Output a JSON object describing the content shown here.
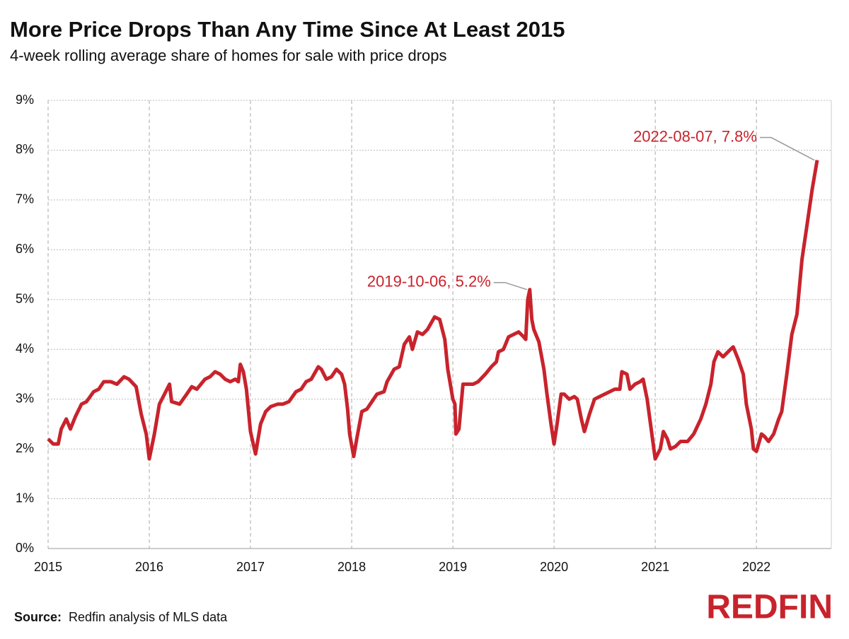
{
  "chart_data": {
    "type": "line",
    "title": "More Price Drops Than Any Time Since At Least 2015",
    "subtitle": "4-week rolling average share of homes for sale with price drops",
    "source_label": "Source:",
    "source": "Redfin analysis of MLS data",
    "logo": "REDFIN",
    "color": "#c8232c",
    "grid": true,
    "xlim": [
      2015,
      2022.74
    ],
    "xticks": [
      2015,
      2016,
      2017,
      2018,
      2019,
      2020,
      2021,
      2022
    ],
    "ylim": [
      0,
      9
    ],
    "yticks": [
      {
        "value": 0,
        "label": "0%"
      },
      {
        "value": 1,
        "label": "1%"
      },
      {
        "value": 2,
        "label": "2%"
      },
      {
        "value": 3,
        "label": "3%"
      },
      {
        "value": 4,
        "label": "4%"
      },
      {
        "value": 5,
        "label": "5%"
      },
      {
        "value": 6,
        "label": "6%"
      },
      {
        "value": 7,
        "label": "7%"
      },
      {
        "value": 8,
        "label": "8%"
      },
      {
        "value": 9,
        "label": "9%"
      }
    ],
    "x": [
      2015.0,
      2015.05,
      2015.1,
      2015.13,
      2015.18,
      2015.22,
      2015.27,
      2015.33,
      2015.38,
      2015.45,
      2015.5,
      2015.55,
      2015.62,
      2015.68,
      2015.75,
      2015.8,
      2015.87,
      2015.92,
      2015.97,
      2016.0,
      2016.05,
      2016.1,
      2016.15,
      2016.2,
      2016.22,
      2016.3,
      2016.37,
      2016.42,
      2016.47,
      2016.55,
      2016.6,
      2016.65,
      2016.7,
      2016.75,
      2016.8,
      2016.85,
      2016.88,
      2016.9,
      2016.93,
      2016.96,
      2017.0,
      2017.05,
      2017.1,
      2017.15,
      2017.2,
      2017.27,
      2017.32,
      2017.38,
      2017.45,
      2017.5,
      2017.55,
      2017.6,
      2017.67,
      2017.7,
      2017.75,
      2017.8,
      2017.85,
      2017.9,
      2017.93,
      2017.96,
      2017.98,
      2018.02,
      2018.05,
      2018.1,
      2018.15,
      2018.2,
      2018.25,
      2018.32,
      2018.35,
      2018.42,
      2018.47,
      2018.52,
      2018.57,
      2018.6,
      2018.65,
      2018.7,
      2018.75,
      2018.82,
      2018.87,
      2018.92,
      2018.95,
      2019.0,
      2019.02,
      2019.03,
      2019.06,
      2019.1,
      2019.15,
      2019.2,
      2019.25,
      2019.32,
      2019.38,
      2019.43,
      2019.45,
      2019.5,
      2019.55,
      2019.6,
      2019.65,
      2019.7,
      2019.72,
      2019.74,
      2019.76,
      2019.78,
      2019.8,
      2019.85,
      2019.9,
      2019.93,
      2019.97,
      2020.0,
      2020.03,
      2020.07,
      2020.1,
      2020.15,
      2020.2,
      2020.23,
      2020.27,
      2020.3,
      2020.35,
      2020.4,
      2020.45,
      2020.5,
      2020.55,
      2020.6,
      2020.65,
      2020.67,
      2020.72,
      2020.75,
      2020.8,
      2020.85,
      2020.88,
      2020.92,
      2020.96,
      2021.0,
      2021.05,
      2021.08,
      2021.12,
      2021.15,
      2021.2,
      2021.25,
      2021.32,
      2021.38,
      2021.45,
      2021.5,
      2021.55,
      2021.58,
      2021.62,
      2021.67,
      2021.72,
      2021.77,
      2021.82,
      2021.87,
      2021.9,
      2021.95,
      2021.97,
      2022.0,
      2022.05,
      2022.08,
      2022.12,
      2022.17,
      2022.22,
      2022.25,
      2022.3,
      2022.35,
      2022.4,
      2022.45,
      2022.5,
      2022.55,
      2022.6
    ],
    "values": [
      2.2,
      2.1,
      2.1,
      2.4,
      2.6,
      2.4,
      2.65,
      2.9,
      2.95,
      3.15,
      3.2,
      3.35,
      3.35,
      3.3,
      3.45,
      3.4,
      3.25,
      2.7,
      2.3,
      1.8,
      2.3,
      2.9,
      3.1,
      3.3,
      2.95,
      2.9,
      3.1,
      3.25,
      3.2,
      3.4,
      3.45,
      3.55,
      3.5,
      3.4,
      3.35,
      3.4,
      3.35,
      3.7,
      3.55,
      3.2,
      2.35,
      1.9,
      2.5,
      2.75,
      2.85,
      2.9,
      2.9,
      2.95,
      3.15,
      3.2,
      3.35,
      3.4,
      3.65,
      3.6,
      3.4,
      3.45,
      3.6,
      3.5,
      3.3,
      2.8,
      2.3,
      1.85,
      2.2,
      2.75,
      2.8,
      2.95,
      3.1,
      3.15,
      3.35,
      3.6,
      3.65,
      4.1,
      4.25,
      4.0,
      4.35,
      4.3,
      4.4,
      4.65,
      4.6,
      4.2,
      3.6,
      3.0,
      2.9,
      2.3,
      2.4,
      3.3,
      3.3,
      3.3,
      3.35,
      3.5,
      3.65,
      3.75,
      3.95,
      4.0,
      4.25,
      4.3,
      4.35,
      4.25,
      4.2,
      5.0,
      5.2,
      4.6,
      4.4,
      4.15,
      3.6,
      3.1,
      2.5,
      2.1,
      2.5,
      3.1,
      3.1,
      3.0,
      3.05,
      3.0,
      2.6,
      2.35,
      2.7,
      3.0,
      3.05,
      3.1,
      3.15,
      3.2,
      3.2,
      3.55,
      3.5,
      3.2,
      3.3,
      3.35,
      3.4,
      3.0,
      2.4,
      1.8,
      2.0,
      2.35,
      2.2,
      2.0,
      2.05,
      2.15,
      2.15,
      2.3,
      2.6,
      2.9,
      3.3,
      3.75,
      3.95,
      3.85,
      3.95,
      4.05,
      3.8,
      3.5,
      2.9,
      2.4,
      2.0,
      1.95,
      2.3,
      2.25,
      2.15,
      2.3,
      2.6,
      2.75,
      3.5,
      4.3,
      4.7,
      5.8,
      6.5,
      7.2,
      7.8
    ],
    "annotations": [
      {
        "text": "2019-10-06, 5.2%",
        "x": 2019.76,
        "y": 5.2
      },
      {
        "text": "2022-08-07, 7.8%",
        "x": 2022.6,
        "y": 7.8
      }
    ]
  }
}
